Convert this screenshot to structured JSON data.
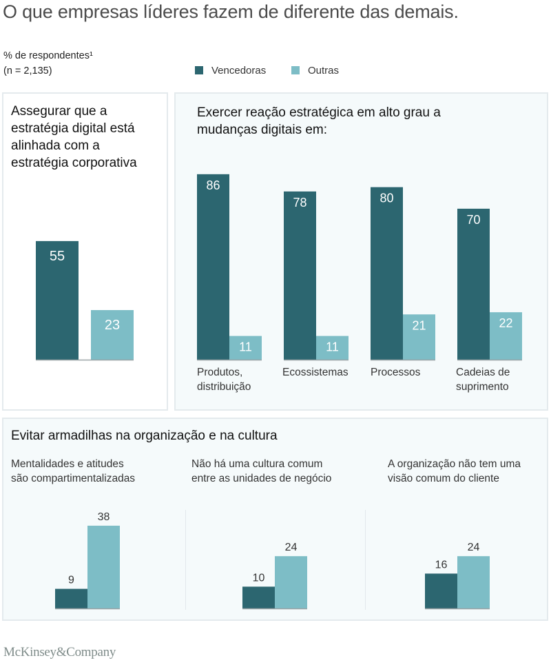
{
  "header": {
    "title": "O que empresas líderes fazem de diferente das demais.",
    "unit_line1": "% de respondentes¹",
    "unit_line2": "(n = 2,135)"
  },
  "legend": [
    {
      "label": "Vencedoras",
      "color": "#2c6670"
    },
    {
      "label": "Outras",
      "color": "#7dbdc6"
    }
  ],
  "colors": {
    "dark": "#2c6670",
    "light": "#7dbdc6",
    "baseline": "#9aa3a6"
  },
  "footer": {
    "logo": "McKinsey&Company"
  },
  "chart_data": [
    {
      "type": "bar",
      "title": "Assegurar que a estratégia digital está alinhada com a estratégia corporativa",
      "title_lines": [
        "Assegurar que a",
        "estratégia digital está",
        "alinhada com a",
        "estratégia corporativa"
      ],
      "categories": [
        ""
      ],
      "series": [
        {
          "name": "Vencedoras",
          "values": [
            55
          ]
        },
        {
          "name": "Outras",
          "values": [
            23
          ]
        }
      ],
      "ylim": [
        0,
        100
      ],
      "label_position": "inside",
      "legend": "top"
    },
    {
      "type": "bar",
      "title": "Exercer reação estratégica em alto grau a mudanças digitais em:",
      "title_lines": [
        "Exercer reação estratégica em alto grau a",
        "mudanças digitais em:"
      ],
      "categories": [
        "Produtos, distribuição",
        "Ecossistemas",
        "Processos",
        "Cadeias de suprimento"
      ],
      "category_lines": [
        [
          "Produtos,",
          "distribuição"
        ],
        [
          "Ecossistemas"
        ],
        [
          "Processos"
        ],
        [
          "Cadeias de",
          "suprimento"
        ]
      ],
      "series": [
        {
          "name": "Vencedoras",
          "values": [
            86,
            78,
            80,
            70
          ]
        },
        {
          "name": "Outras",
          "values": [
            11,
            11,
            21,
            22
          ]
        }
      ],
      "ylim": [
        0,
        100
      ],
      "label_position": "inside"
    },
    {
      "type": "bar",
      "title": "Evitar armadilhas na organização e na cultura",
      "categories": [
        "Mentalidades e atitudes são compartimentalizadas",
        "Não há uma cultura comum entre as unidades de negócio",
        "A organização não tem uma visão comum do cliente"
      ],
      "category_lines": [
        [
          "Mentalidades e atitudes",
          "são compartimentalizadas"
        ],
        [
          "Não há uma cultura comum",
          "entre as unidades de negócio"
        ],
        [
          "A organização não tem uma",
          "visão comum do cliente"
        ]
      ],
      "series": [
        {
          "name": "Vencedoras",
          "values": [
            9,
            10,
            16
          ]
        },
        {
          "name": "Outras",
          "values": [
            38,
            24,
            24
          ]
        }
      ],
      "ylim": [
        0,
        100
      ],
      "label_position": "above"
    }
  ]
}
